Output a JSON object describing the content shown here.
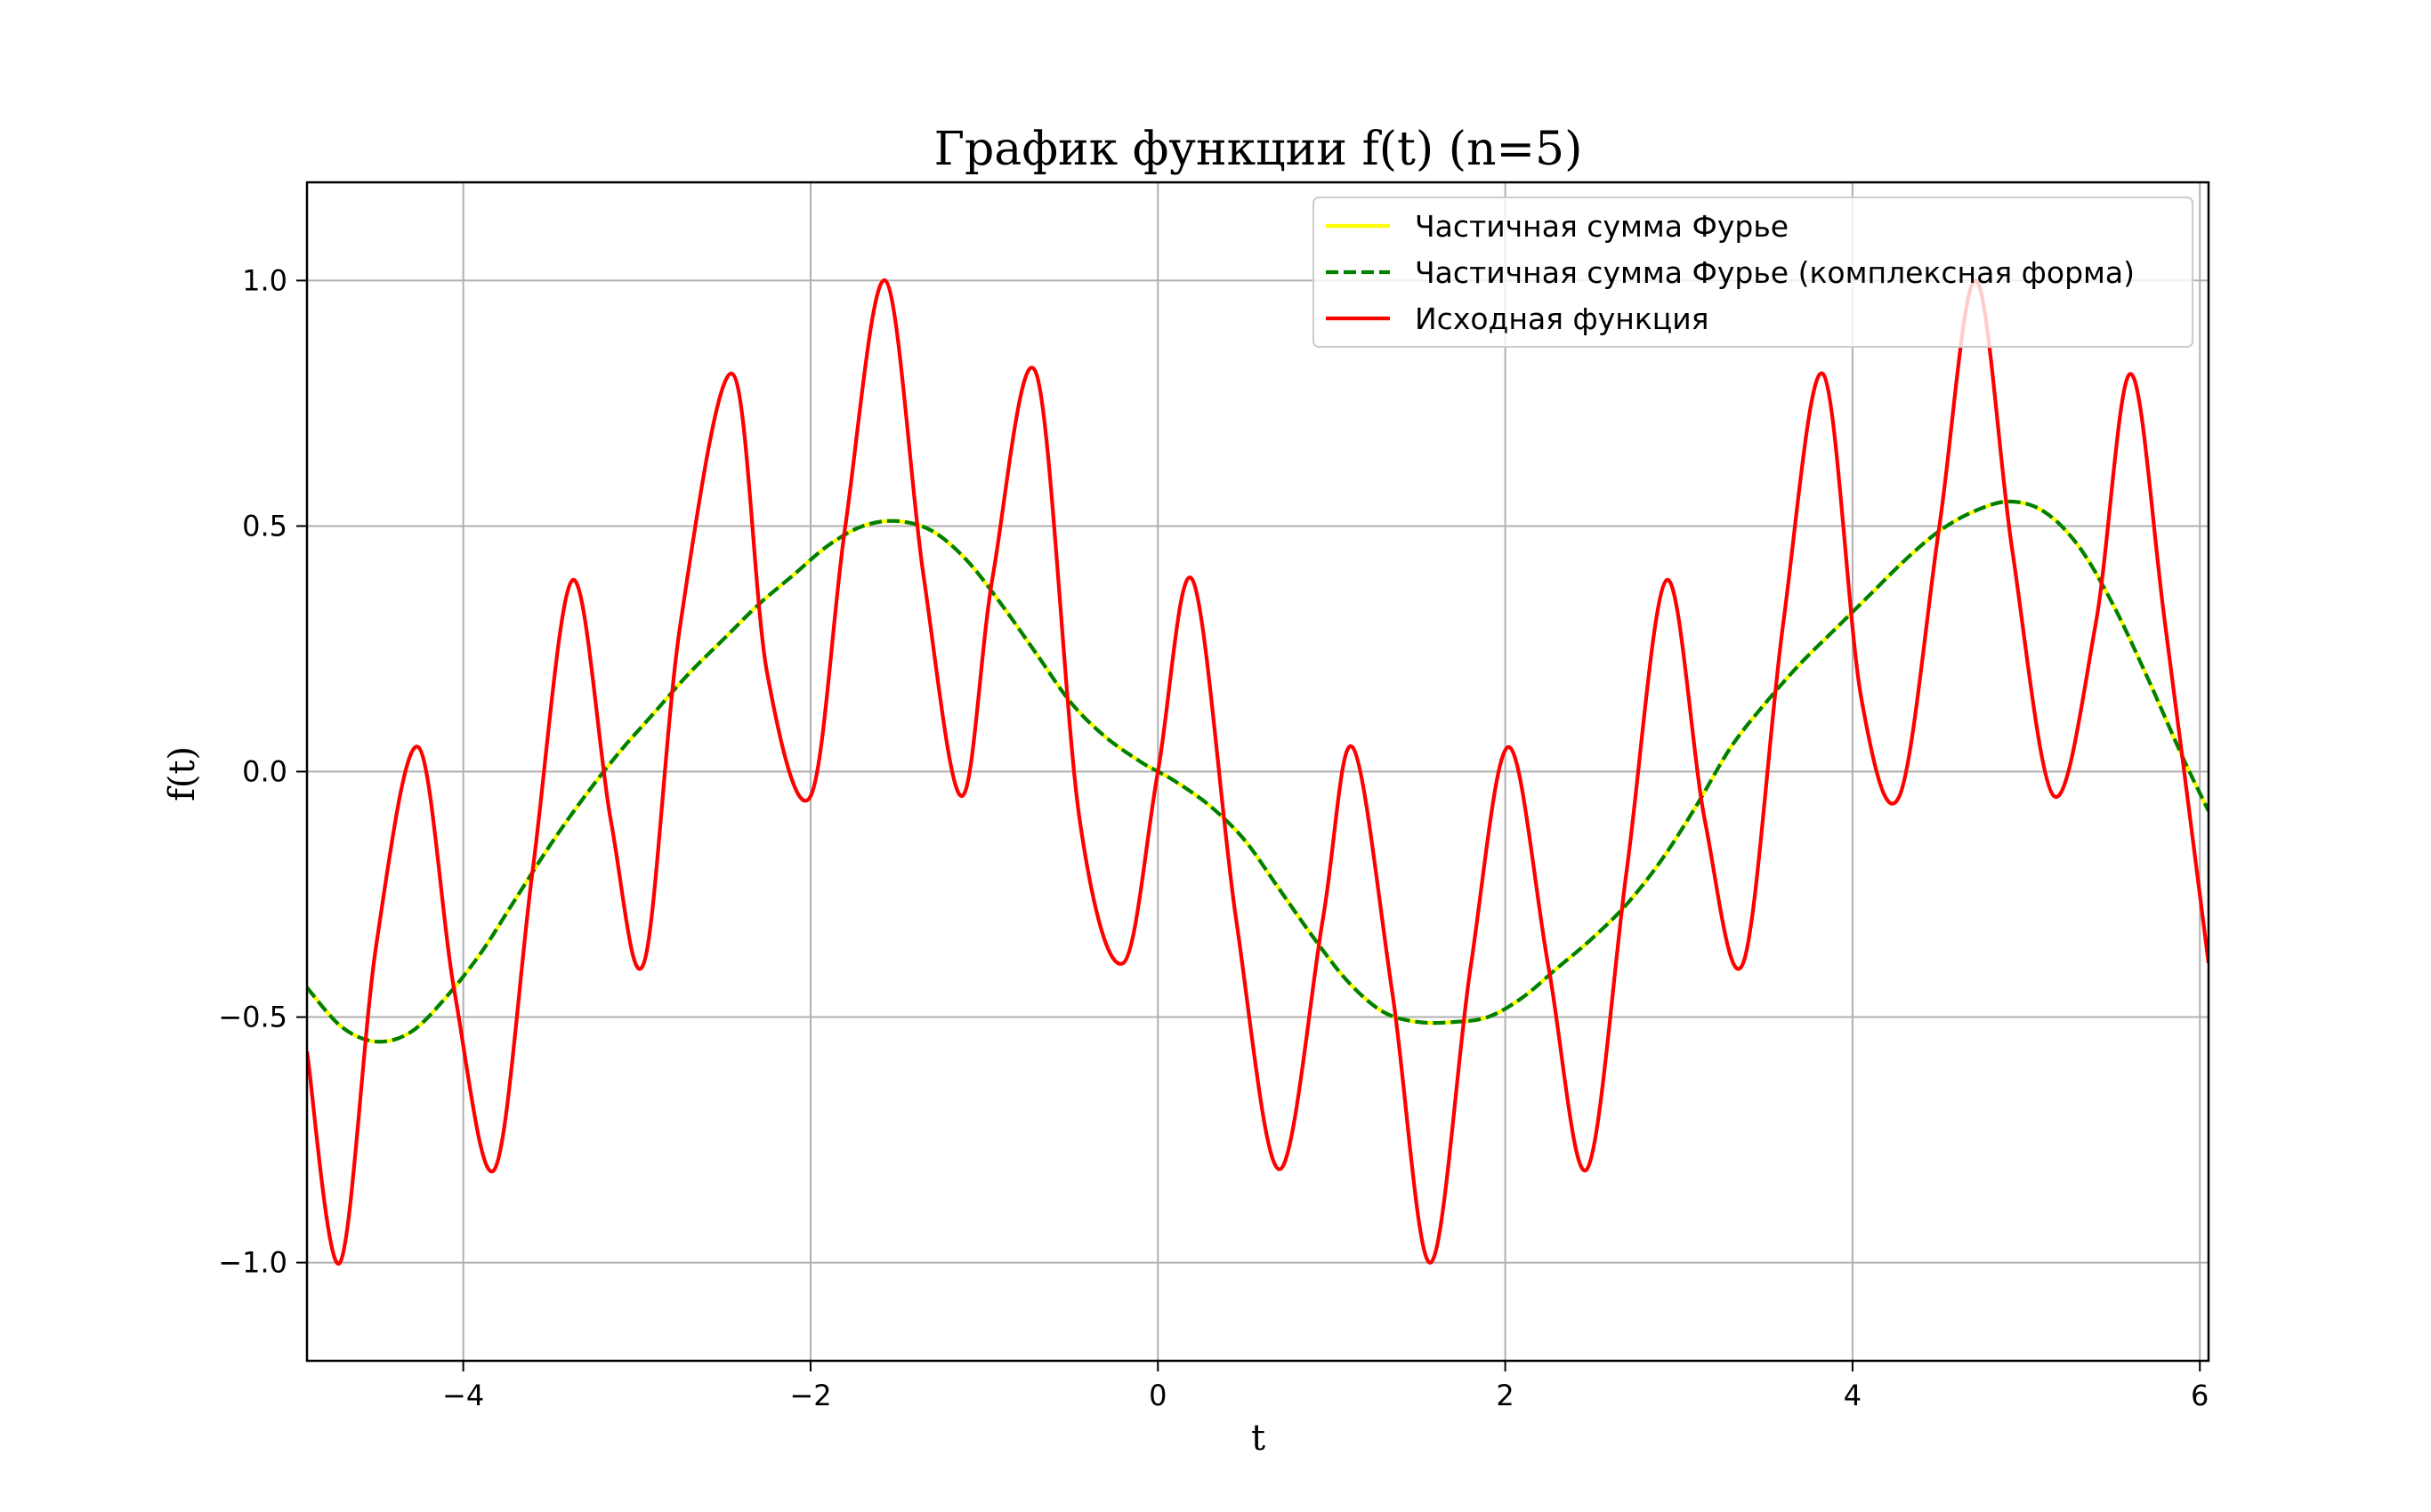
{
  "chart_data": {
    "type": "line",
    "title": "График функции f(t) (n=5)",
    "xlabel": "t",
    "ylabel": "f(t)",
    "xlim": [
      -4.9,
      6.05
    ],
    "ylim": [
      -1.2,
      1.2
    ],
    "grid": true,
    "legend_position": "top-right",
    "x_ticks": [
      {
        "value": -4,
        "label": "−4"
      },
      {
        "value": -2,
        "label": "−2"
      },
      {
        "value": 0,
        "label": "0"
      },
      {
        "value": 2,
        "label": "2"
      },
      {
        "value": 4,
        "label": "4"
      },
      {
        "value": 6,
        "label": "6"
      }
    ],
    "y_ticks": [
      {
        "value": -1.0,
        "label": "−1.0"
      },
      {
        "value": -0.5,
        "label": "−0.5"
      },
      {
        "value": 0.0,
        "label": "0.0"
      },
      {
        "value": 0.5,
        "label": "0.5"
      },
      {
        "value": 1.0,
        "label": "1.0"
      }
    ],
    "series": [
      {
        "name": "Частичная сумма Фурье",
        "color": "#ffff00",
        "style": "solid",
        "x": [
          -4.9,
          -4.7,
          -4.5,
          -4.3,
          -4.1,
          -3.9,
          -3.7,
          -3.5,
          -3.3,
          -3.1,
          -2.9,
          -2.7,
          -2.5,
          -2.3,
          -2.1,
          -1.9,
          -1.7,
          -1.5,
          -1.3,
          -1.1,
          -0.9,
          -0.7,
          -0.5,
          -0.3,
          -0.1,
          0.0,
          0.1,
          0.3,
          0.5,
          0.7,
          0.9,
          1.1,
          1.3,
          1.5,
          1.7,
          1.9,
          2.1,
          2.3,
          2.5,
          2.7,
          2.9,
          3.1,
          3.3,
          3.5,
          3.7,
          3.9,
          4.1,
          4.3,
          4.5,
          4.7,
          4.9,
          5.1,
          5.3,
          5.5,
          5.7,
          5.9,
          6.05
        ],
        "y": [
          -0.44,
          -0.52,
          -0.55,
          -0.53,
          -0.46,
          -0.37,
          -0.26,
          -0.15,
          -0.05,
          0.04,
          0.12,
          0.2,
          0.27,
          0.34,
          0.4,
          0.46,
          0.5,
          0.51,
          0.49,
          0.43,
          0.34,
          0.24,
          0.14,
          0.07,
          0.02,
          0.0,
          -0.02,
          -0.07,
          -0.14,
          -0.24,
          -0.34,
          -0.43,
          -0.49,
          -0.51,
          -0.51,
          -0.5,
          -0.46,
          -0.4,
          -0.34,
          -0.27,
          -0.18,
          -0.07,
          0.05,
          0.14,
          0.22,
          0.29,
          0.36,
          0.43,
          0.49,
          0.53,
          0.55,
          0.53,
          0.46,
          0.34,
          0.19,
          0.03,
          -0.08
        ]
      },
      {
        "name": "Частичная сумма Фурье (комплексная форма)",
        "color": "#008000",
        "style": "dashed",
        "x": [
          -4.9,
          -4.7,
          -4.5,
          -4.3,
          -4.1,
          -3.9,
          -3.7,
          -3.5,
          -3.3,
          -3.1,
          -2.9,
          -2.7,
          -2.5,
          -2.3,
          -2.1,
          -1.9,
          -1.7,
          -1.5,
          -1.3,
          -1.1,
          -0.9,
          -0.7,
          -0.5,
          -0.3,
          -0.1,
          0.0,
          0.1,
          0.3,
          0.5,
          0.7,
          0.9,
          1.1,
          1.3,
          1.5,
          1.7,
          1.9,
          2.1,
          2.3,
          2.5,
          2.7,
          2.9,
          3.1,
          3.3,
          3.5,
          3.7,
          3.9,
          4.1,
          4.3,
          4.5,
          4.7,
          4.9,
          5.1,
          5.3,
          5.5,
          5.7,
          5.9,
          6.05
        ],
        "y": [
          -0.44,
          -0.52,
          -0.55,
          -0.53,
          -0.46,
          -0.37,
          -0.26,
          -0.15,
          -0.05,
          0.04,
          0.12,
          0.2,
          0.27,
          0.34,
          0.4,
          0.46,
          0.5,
          0.51,
          0.49,
          0.43,
          0.34,
          0.24,
          0.14,
          0.07,
          0.02,
          0.0,
          -0.02,
          -0.07,
          -0.14,
          -0.24,
          -0.34,
          -0.43,
          -0.49,
          -0.51,
          -0.51,
          -0.5,
          -0.46,
          -0.4,
          -0.34,
          -0.27,
          -0.18,
          -0.07,
          0.05,
          0.14,
          0.22,
          0.29,
          0.36,
          0.43,
          0.49,
          0.53,
          0.55,
          0.53,
          0.46,
          0.34,
          0.19,
          0.03,
          -0.08
        ]
      },
      {
        "name": "Исходная функция",
        "color": "#ff0000",
        "style": "solid",
        "x": [
          -4.9,
          -4.71,
          -4.5,
          -4.26,
          -4.05,
          -3.82,
          -3.6,
          -3.37,
          -3.15,
          -2.96,
          -2.75,
          -2.45,
          -2.25,
          -2.0,
          -1.8,
          -1.57,
          -1.35,
          -1.13,
          -0.95,
          -0.7,
          -0.45,
          -0.2,
          0.0,
          0.2,
          0.45,
          0.7,
          0.95,
          1.12,
          1.35,
          1.57,
          1.8,
          2.02,
          2.25,
          2.47,
          2.7,
          2.93,
          3.15,
          3.37,
          3.6,
          3.83,
          4.05,
          4.27,
          4.5,
          4.71,
          4.92,
          5.16,
          5.4,
          5.6,
          5.8,
          6.05
        ],
        "y": [
          -0.57,
          -1.0,
          -0.35,
          0.05,
          -0.45,
          -0.81,
          -0.2,
          0.39,
          -0.1,
          -0.39,
          0.3,
          0.81,
          0.2,
          -0.05,
          0.5,
          1.0,
          0.4,
          -0.05,
          0.4,
          0.81,
          -0.1,
          -0.39,
          0.0,
          0.39,
          -0.3,
          -0.81,
          -0.3,
          0.05,
          -0.45,
          -1.0,
          -0.4,
          0.05,
          -0.4,
          -0.81,
          -0.2,
          0.39,
          -0.1,
          -0.39,
          0.3,
          0.81,
          0.15,
          -0.05,
          0.5,
          1.0,
          0.45,
          -0.05,
          0.3,
          0.81,
          0.3,
          -0.39
        ]
      }
    ]
  }
}
